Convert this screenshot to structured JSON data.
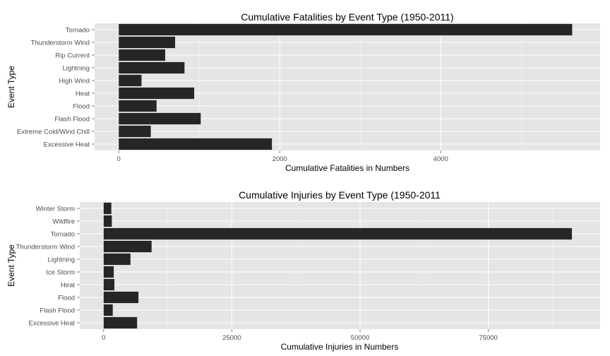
{
  "chart_data": [
    {
      "type": "bar",
      "orientation": "horizontal",
      "title": "Cumulative Fatalities by Event Type (1950-2011)",
      "xlabel": "Cumulative Fatalities in Numbers",
      "ylabel": "Event Type",
      "xlim": [
        -300,
        5980
      ],
      "xticks": [
        0,
        2000,
        4000
      ],
      "xtick_labels": [
        "0",
        "2000",
        "4000"
      ],
      "grid": true,
      "bar_color": "#262626",
      "panel_color": "#e5e5e5",
      "categories": [
        "Tornado",
        "Thunderstorm Wind",
        "Rip Current",
        "Lightning",
        "High Wind",
        "Heat",
        "Flood",
        "Flash Flood",
        "Extreme Cold/Wind Chill",
        "Excessive Heat"
      ],
      "values": [
        5633,
        700,
        577,
        817,
        283,
        937,
        470,
        1018,
        398,
        1903
      ]
    },
    {
      "type": "bar",
      "orientation": "horizontal",
      "title": "Cumulative Injuries by Event Type (1950-2011",
      "xlabel": "Cumulative Injuries in Numbers",
      "ylabel": "Event Type",
      "xlim": [
        -4650,
        96800
      ],
      "xticks": [
        0,
        25000,
        50000,
        75000
      ],
      "xtick_labels": [
        "0",
        "25000",
        "50000",
        "75000"
      ],
      "grid": true,
      "bar_color": "#262626",
      "panel_color": "#e5e5e5",
      "categories": [
        "Winter Storm",
        "Wildfire",
        "Tornado",
        "Thunderstorm Wind",
        "Lightning",
        "Ice Storm",
        "Heat",
        "Flood",
        "Flash Flood",
        "Excessive Heat"
      ],
      "values": [
        1500,
        1600,
        91300,
        9350,
        5230,
        1975,
        2100,
        6790,
        1780,
        6525
      ]
    }
  ]
}
